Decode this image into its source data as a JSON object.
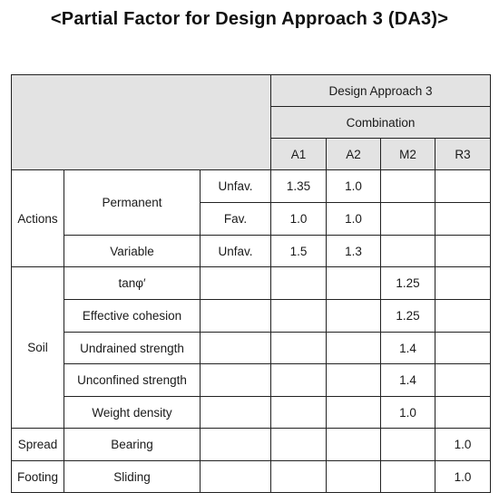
{
  "title": "<Partial Factor for Design Approach 3 (DA3)>",
  "header": {
    "approach": "Design Approach 3",
    "combination": "Combination",
    "columns": [
      "A1",
      "A2",
      "M2",
      "R3"
    ]
  },
  "actions": {
    "group": "Actions",
    "permanent": {
      "label": "Permanent",
      "unfav": {
        "condition": "Unfav.",
        "A1": "1.35",
        "A2": "1.0",
        "M2": "",
        "R3": ""
      },
      "fav": {
        "condition": "Fav.",
        "A1": "1.0",
        "A2": "1.0",
        "M2": "",
        "R3": ""
      }
    },
    "variable": {
      "label": "Variable",
      "condition": "Unfav.",
      "A1": "1.5",
      "A2": "1.3",
      "M2": "",
      "R3": ""
    }
  },
  "soil": {
    "group": "Soil",
    "rows": [
      {
        "label": "tanφ′",
        "M2": "1.25"
      },
      {
        "label": "Effective cohesion",
        "M2": "1.25"
      },
      {
        "label": "Undrained strength",
        "M2": "1.4"
      },
      {
        "label": "Unconfined strength",
        "M2": "1.4"
      },
      {
        "label": "Weight density",
        "M2": "1.0"
      }
    ]
  },
  "spread_footing": {
    "group_line1": "Spread",
    "group_line2": "Footing",
    "rows": [
      {
        "label": "Bearing",
        "R3": "1.0"
      },
      {
        "label": "Sliding",
        "R3": "1.0"
      }
    ]
  }
}
